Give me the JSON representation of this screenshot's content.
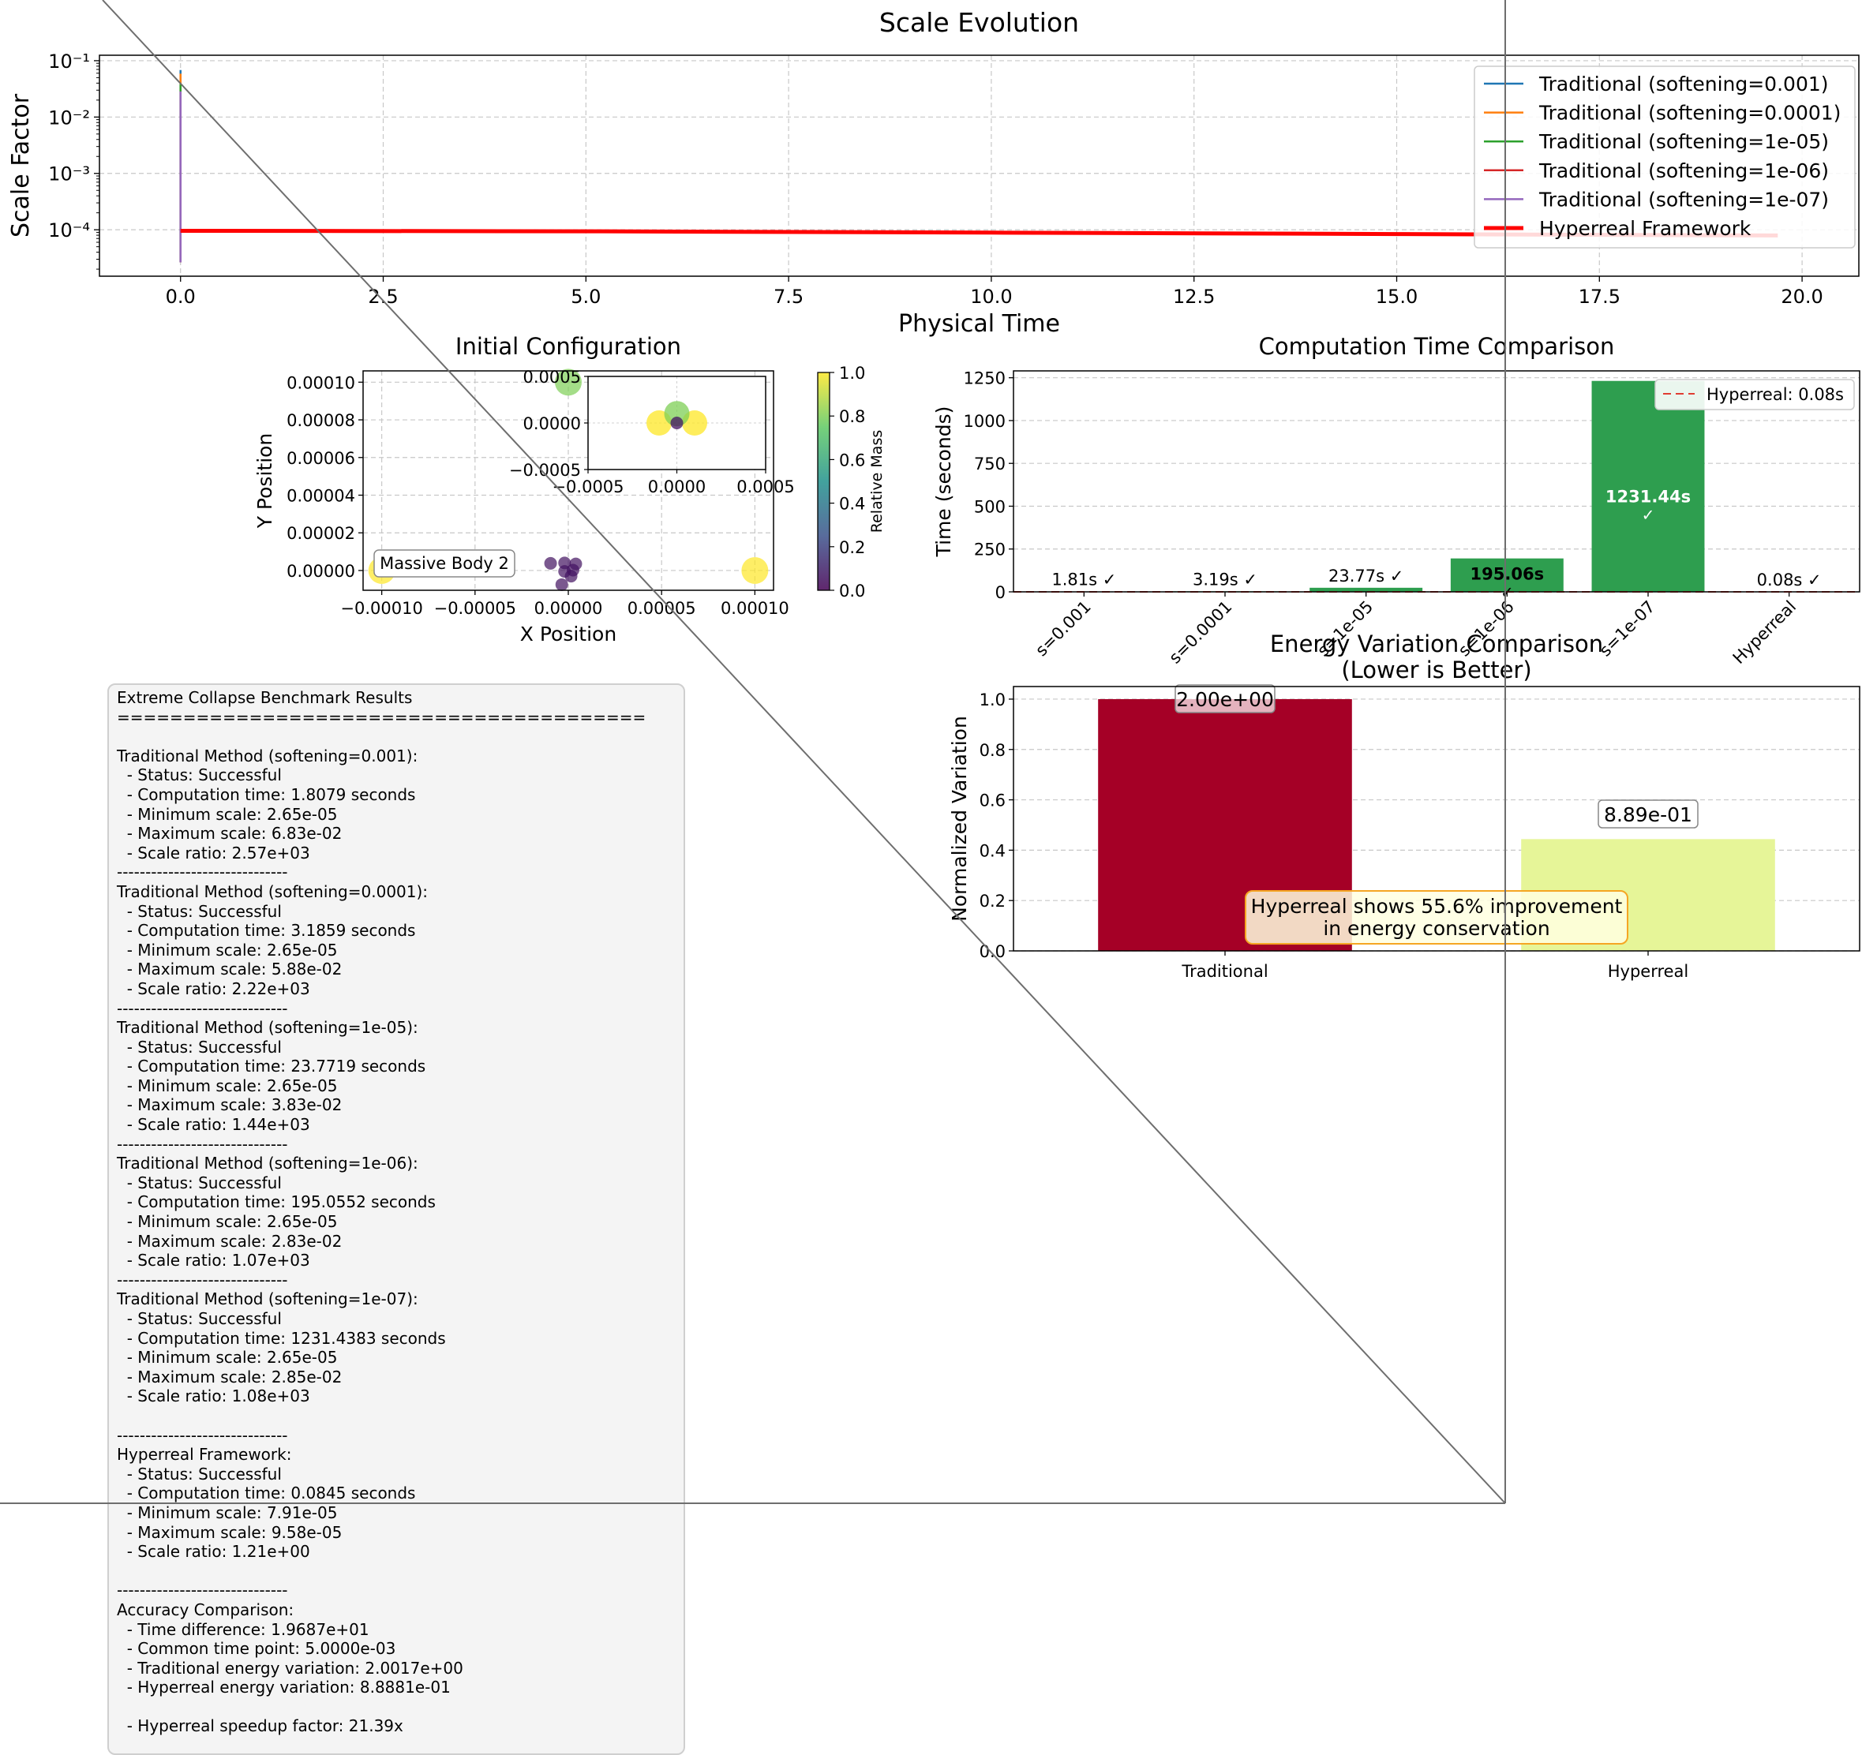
{
  "chart_data": [
    {
      "type": "line",
      "title": "Scale Evolution",
      "xlabel": "Physical Time",
      "ylabel": "Scale Factor",
      "yscale": "log",
      "xlim": [
        -1.0,
        20.7
      ],
      "ylim": [
        1.5e-05,
        0.125
      ],
      "x_ticks": [
        "0.0",
        "2.5",
        "5.0",
        "7.5",
        "10.0",
        "12.5",
        "15.0",
        "17.5",
        "20.0"
      ],
      "y_ticks": [
        "10⁻⁴",
        "10⁻³",
        "10⁻²",
        "10⁻¹"
      ],
      "grid": true,
      "legend_position": "top-right",
      "series": [
        {
          "name": "Traditional (softening=0.001)",
          "color": "#1f77b4",
          "x": [
            0.0,
            0.0
          ],
          "y": [
            2.65e-05,
            0.0683
          ]
        },
        {
          "name": "Traditional (softening=0.0001)",
          "color": "#ff7f0e",
          "x": [
            0.0,
            0.0
          ],
          "y": [
            2.65e-05,
            0.0588
          ]
        },
        {
          "name": "Traditional (softening=1e-05)",
          "color": "#2ca02c",
          "x": [
            0.0,
            0.0
          ],
          "y": [
            2.65e-05,
            0.0383
          ]
        },
        {
          "name": "Traditional (softening=1e-06)",
          "color": "#d62728",
          "x": [
            0.0,
            0.0
          ],
          "y": [
            2.65e-05,
            0.0283
          ]
        },
        {
          "name": "Traditional (softening=1e-07)",
          "color": "#9467bd",
          "x": [
            0.0,
            0.0
          ],
          "y": [
            2.65e-05,
            0.0285
          ]
        },
        {
          "name": "Hyperreal Framework",
          "color": "#ff0000",
          "x": [
            0.0,
            5.0,
            10.0,
            15.0,
            19.7
          ],
          "y": [
            9.58e-05,
            9.4e-05,
            8.9e-05,
            8.4e-05,
            7.91e-05
          ]
        }
      ]
    },
    {
      "type": "scatter",
      "title": "Initial Configuration",
      "xlabel": "X Position",
      "ylabel": "Y Position",
      "xlim": [
        -0.00011,
        0.00011
      ],
      "ylim": [
        -1.05e-05,
        0.000106
      ],
      "x_ticks": [
        "−0.00010",
        "−0.00005",
        "0.00000",
        "0.00005",
        "0.00010"
      ],
      "y_ticks": [
        "0.00000",
        "0.00002",
        "0.00004",
        "0.00006",
        "0.00008",
        "0.00010"
      ],
      "grid": true,
      "colorbar": {
        "label": "Relative Mass",
        "ticks": [
          "0.0",
          "0.2",
          "0.4",
          "0.6",
          "0.8",
          "1.0"
        ],
        "colormap": "viridis"
      },
      "annotation": "Massive Body 2",
      "points": [
        {
          "x": -0.0001,
          "y": 0.0,
          "mass": 1.0
        },
        {
          "x": 0.0001,
          "y": 0.0,
          "mass": 1.0
        },
        {
          "x": 0.0,
          "y": 0.0001,
          "mass": 0.8
        },
        {
          "x": -9.5e-06,
          "y": 3.8e-06,
          "mass": 0.05
        },
        {
          "x": -2e-06,
          "y": 4e-06,
          "mass": 0.05
        },
        {
          "x": 4e-06,
          "y": 3.5e-06,
          "mass": 0.05
        },
        {
          "x": 2.5e-06,
          "y": 2e-07,
          "mass": 0.05
        },
        {
          "x": -2e-06,
          "y": -5e-07,
          "mass": 0.05
        },
        {
          "x": 1.5e-06,
          "y": -3e-06,
          "mass": 0.05
        },
        {
          "x": -3.5e-06,
          "y": -7.5e-06,
          "mass": 0.05
        }
      ],
      "inset": {
        "xlim": [
          -0.0005,
          0.0005
        ],
        "ylim": [
          -0.0005,
          0.0005
        ],
        "x_ticks": [
          "−0.0005",
          "0.0000",
          "0.0005"
        ],
        "y_ticks": [
          "−0.0005",
          "0.0000",
          "0.0005"
        ],
        "points": [
          {
            "x": -0.0001,
            "y": 0.0,
            "mass": 1.0
          },
          {
            "x": 0.0001,
            "y": 0.0,
            "mass": 1.0
          },
          {
            "x": 0.0,
            "y": 0.0001,
            "mass": 0.8
          },
          {
            "x": 0.0,
            "y": 0.0,
            "mass": 0.05
          }
        ]
      }
    },
    {
      "type": "bar",
      "title": "Computation Time Comparison",
      "xlabel": "",
      "ylabel": "Time (seconds)",
      "ylim": [
        0,
        1290
      ],
      "y_ticks": [
        "0",
        "250",
        "500",
        "750",
        "1000",
        "1250"
      ],
      "categories": [
        "s=0.001",
        "s=0.0001",
        "s=1e-05",
        "s=1e-06",
        "s=1e-07",
        "Hyperreal"
      ],
      "values": [
        1.81,
        3.19,
        23.77,
        195.06,
        1231.44,
        0.08
      ],
      "labels": [
        "1.81s",
        "3.19s",
        "23.77s",
        "195.06s",
        "1231.44s",
        "0.08s"
      ],
      "check_mark": "✓",
      "bar_color": "#2e9e4f",
      "reference_line": {
        "name": "Hyperreal: 0.08s",
        "value": 0.08,
        "color": "#e03c31"
      },
      "legend_position": "top-right",
      "grid": true
    },
    {
      "type": "bar",
      "title": "Energy Variation Comparison\n(Lower is Better)",
      "xlabel": "",
      "ylabel": "Normalized Variation",
      "ylim": [
        0,
        1.05
      ],
      "y_ticks": [
        "0.0",
        "0.2",
        "0.4",
        "0.6",
        "0.8",
        "1.0"
      ],
      "categories": [
        "Traditional",
        "Hyperreal"
      ],
      "values": [
        1.0,
        0.444
      ],
      "labels": [
        "2.00e+00",
        "8.89e-01"
      ],
      "colors": [
        "#a50026",
        "#e6f598"
      ],
      "annotation": "Hyperreal shows 55.6% improvement\nin energy conservation",
      "grid": true
    }
  ],
  "results_text": "Extreme Collapse Benchmark Results\n========================================\n\nTraditional Method (softening=0.001):\n  - Status: Successful\n  - Computation time: 1.8079 seconds\n  - Minimum scale: 2.65e-05\n  - Maximum scale: 6.83e-02\n  - Scale ratio: 2.57e+03\n------------------------------\nTraditional Method (softening=0.0001):\n  - Status: Successful\n  - Computation time: 3.1859 seconds\n  - Minimum scale: 2.65e-05\n  - Maximum scale: 5.88e-02\n  - Scale ratio: 2.22e+03\n------------------------------\nTraditional Method (softening=1e-05):\n  - Status: Successful\n  - Computation time: 23.7719 seconds\n  - Minimum scale: 2.65e-05\n  - Maximum scale: 3.83e-02\n  - Scale ratio: 1.44e+03\n------------------------------\nTraditional Method (softening=1e-06):\n  - Status: Successful\n  - Computation time: 195.0552 seconds\n  - Minimum scale: 2.65e-05\n  - Maximum scale: 2.83e-02\n  - Scale ratio: 1.07e+03\n------------------------------\nTraditional Method (softening=1e-07):\n  - Status: Successful\n  - Computation time: 1231.4383 seconds\n  - Minimum scale: 2.65e-05\n  - Maximum scale: 2.85e-02\n  - Scale ratio: 1.08e+03\n\n------------------------------\nHyperreal Framework:\n  - Status: Successful\n  - Computation time: 0.0845 seconds\n  - Minimum scale: 7.91e-05\n  - Maximum scale: 9.58e-05\n  - Scale ratio: 1.21e+00\n\n------------------------------\nAccuracy Comparison:\n  - Time difference: 1.9687e+01\n  - Common time point: 5.0000e-03\n  - Traditional energy variation: 2.0017e+00\n  - Hyperreal energy variation: 8.8881e-01\n\n  - Hyperreal speedup factor: 21.39x"
}
